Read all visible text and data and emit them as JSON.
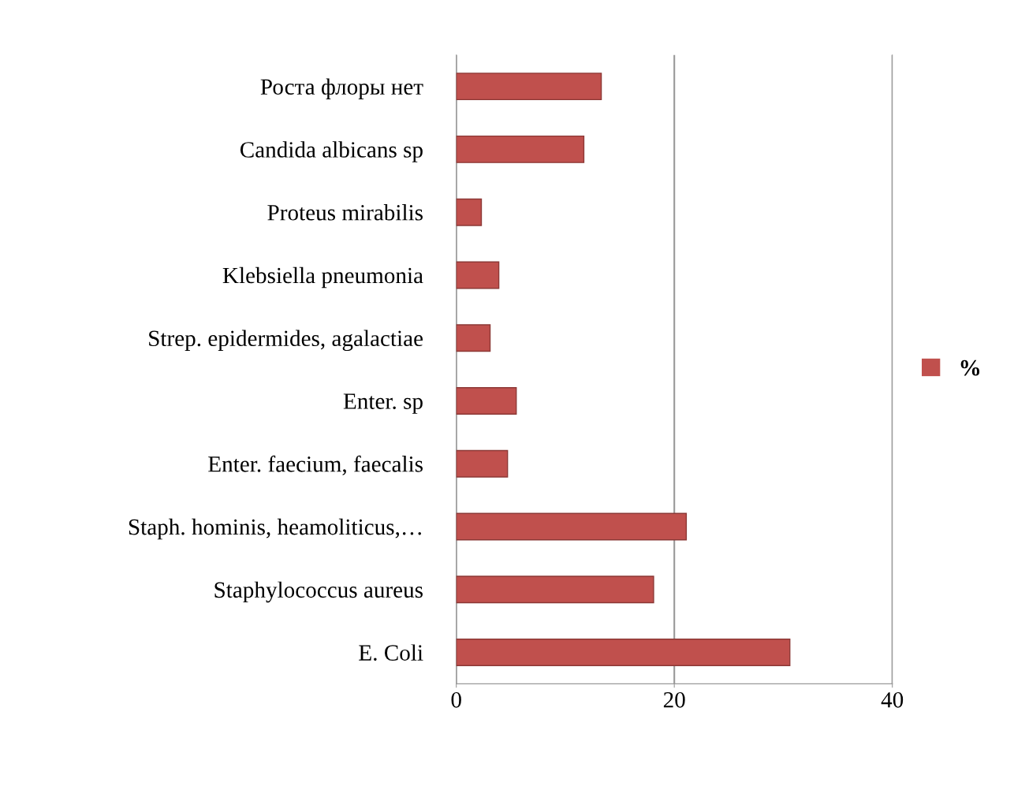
{
  "chart_data": {
    "type": "bar",
    "orientation": "horizontal",
    "categories": [
      "Роста флоры нет",
      "Candida albicans sp",
      "Proteus mirabilis",
      "Klebsiella pneumonia",
      "Strep. epidermides, agalactiae",
      "Enter. sp",
      "Enter. faecium, faecalis",
      "Staph. hominis, heamoliticus,…",
      "Staphylococcus aureus",
      "E. Coli"
    ],
    "series": [
      {
        "name": "%",
        "color": "#c0504d",
        "values": [
          13.3,
          11.7,
          2.3,
          3.9,
          3.1,
          5.5,
          4.7,
          21.1,
          18.1,
          30.6
        ]
      }
    ],
    "xlim": [
      0,
      40
    ],
    "xticks": [
      0,
      20,
      40
    ],
    "grid": "x",
    "legend": "right"
  }
}
